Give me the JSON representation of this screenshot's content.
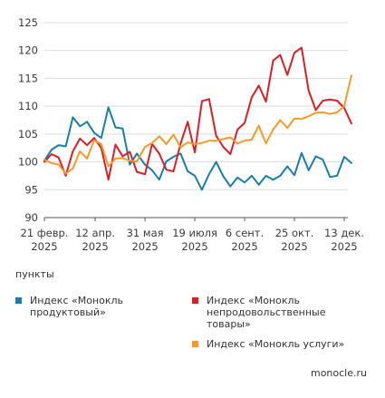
{
  "units_label": "пункты",
  "source": "monocle.ru",
  "chart_data": {
    "type": "line",
    "ylim": [
      90,
      125
    ],
    "yticks": [
      90,
      95,
      100,
      105,
      110,
      115,
      120,
      125
    ],
    "grid": "horizontal",
    "legend_position": "bottom",
    "x": [
      "2025-02-21",
      "2025-02-28",
      "2025-03-07",
      "2025-03-14",
      "2025-03-21",
      "2025-03-28",
      "2025-04-04",
      "2025-04-11",
      "2025-04-18",
      "2025-04-25",
      "2025-05-02",
      "2025-05-09",
      "2025-05-16",
      "2025-05-23",
      "2025-05-31",
      "2025-06-07",
      "2025-06-14",
      "2025-06-21",
      "2025-06-28",
      "2025-07-05",
      "2025-07-12",
      "2025-07-19",
      "2025-07-26",
      "2025-08-02",
      "2025-08-09",
      "2025-08-16",
      "2025-08-23",
      "2025-08-30",
      "2025-09-06",
      "2025-09-13",
      "2025-09-20",
      "2025-09-27",
      "2025-10-04",
      "2025-10-11",
      "2025-10-18",
      "2025-10-25",
      "2025-11-01",
      "2025-11-08",
      "2025-11-15",
      "2025-11-22",
      "2025-11-29",
      "2025-12-06",
      "2025-12-13",
      "2025-12-20"
    ],
    "xticks": [
      {
        "line1": "21 февр.",
        "line2": "2025",
        "x": "2025-02-21"
      },
      {
        "line1": "12 апр.",
        "line2": "2025",
        "x": "2025-04-12"
      },
      {
        "line1": "31 мая",
        "line2": "2025",
        "x": "2025-05-31"
      },
      {
        "line1": "19 июля",
        "line2": "2025",
        "x": "2025-07-19"
      },
      {
        "line1": "6 сент.",
        "line2": "2025",
        "x": "2025-09-06"
      },
      {
        "line1": "25 окт.",
        "line2": "2025",
        "x": "2025-10-25"
      },
      {
        "line1": "13 дек.",
        "line2": "2025",
        "x": "2025-12-13"
      }
    ],
    "series": [
      {
        "name": "Индекс «Монокль продуктовый»",
        "color": "#1a7ea6",
        "values": [
          100.2,
          102.2,
          103.0,
          102.8,
          108.0,
          106.4,
          107.2,
          105.2,
          104.3,
          109.8,
          106.2,
          106.0,
          99.5,
          101.5,
          99.5,
          98.5,
          96.8,
          100.1,
          100.9,
          101.5,
          98.3,
          97.5,
          95.0,
          97.8,
          100.0,
          97.4,
          95.6,
          97.2,
          96.3,
          97.5,
          95.9,
          97.5,
          96.8,
          97.5,
          99.2,
          97.6,
          101.6,
          98.5,
          101.0,
          100.4,
          97.3,
          97.5,
          100.9,
          99.8
        ]
      },
      {
        "name": "Индекс «Монокль\nнепродовольственные\nтовары»",
        "color": "#d42027",
        "values": [
          100.0,
          101.4,
          100.8,
          97.5,
          101.9,
          104.2,
          103.0,
          104.3,
          102.5,
          96.8,
          103.1,
          101.0,
          101.8,
          98.2,
          97.8,
          103.2,
          101.5,
          98.6,
          98.3,
          103.3,
          107.2,
          101.7,
          110.9,
          111.3,
          104.7,
          102.7,
          101.4,
          105.8,
          107.0,
          111.6,
          113.7,
          110.8,
          118.2,
          119.2,
          115.6,
          119.6,
          120.5,
          112.8,
          109.3,
          111.0,
          111.2,
          111.0,
          109.7,
          106.9
        ]
      },
      {
        "name": "Индекс «Монокль услуги»",
        "color": "#f39a2b",
        "values": [
          100.4,
          99.8,
          99.5,
          97.9,
          98.8,
          101.9,
          100.6,
          103.9,
          103.2,
          99.2,
          100.6,
          100.7,
          100.2,
          100.1,
          102.7,
          103.4,
          104.6,
          103.2,
          104.9,
          102.6,
          103.5,
          103.2,
          103.4,
          103.8,
          103.8,
          104.1,
          104.4,
          103.3,
          103.8,
          104.0,
          106.5,
          103.3,
          105.8,
          107.5,
          106.1,
          107.8,
          107.7,
          108.2,
          108.8,
          108.9,
          108.6,
          108.9,
          110.0,
          115.5
        ]
      }
    ]
  }
}
